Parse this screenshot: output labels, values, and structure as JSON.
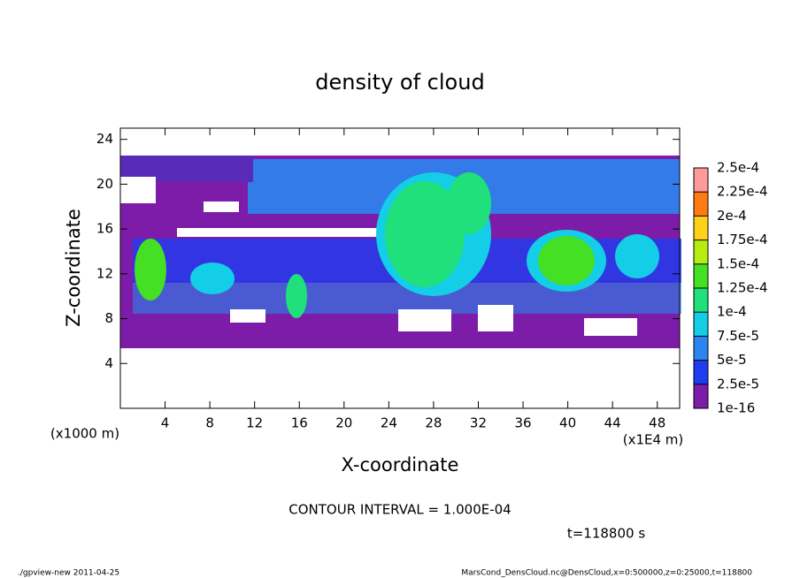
{
  "chart_data": {
    "type": "contour",
    "title": "density of cloud",
    "xlabel": "X-coordinate",
    "ylabel": "Z-coordinate",
    "x_unit_note": "(x1E4 m)",
    "y_unit_note": "(x1000 m)",
    "xlim": [
      0,
      50
    ],
    "ylim": [
      0,
      25
    ],
    "xticks": [
      4,
      8,
      12,
      16,
      20,
      24,
      28,
      32,
      36,
      40,
      44,
      48
    ],
    "yticks": [
      4,
      8,
      12,
      16,
      20,
      24
    ],
    "levels": [
      {
        "value": 1e-16,
        "label": "1e-16"
      },
      {
        "value": 2.5e-05,
        "label": "2.5e-5"
      },
      {
        "value": 5e-05,
        "label": "5e-5"
      },
      {
        "value": 7.5e-05,
        "label": "7.5e-5"
      },
      {
        "value": 0.0001,
        "label": "1e-4"
      },
      {
        "value": 0.000125,
        "label": "1.25e-4"
      },
      {
        "value": 0.00015,
        "label": "1.5e-4"
      },
      {
        "value": 0.000175,
        "label": "1.75e-4"
      },
      {
        "value": 0.0002,
        "label": "2e-4"
      },
      {
        "value": 0.000225,
        "label": "2.25e-4"
      },
      {
        "value": 0.00025,
        "label": "2.5e-4"
      }
    ],
    "level_colors": [
      "#7c1ca8",
      "#1f3cf0",
      "#2a86ee",
      "#14cde6",
      "#1fe07a",
      "#44e024",
      "#b6ec10",
      "#ffd21a",
      "#ff7a10",
      "#ff9a9a"
    ],
    "contour_interval": "CONTOUR INTERVAL = 1.000E-04",
    "time_note": "t=118800 s",
    "footer_left": "./gpview-new  2011-04-25",
    "footer_right": "MarsCond_DensCloud.nc@DensCloud,x=0:500000,z=0:25000,t=118800"
  }
}
